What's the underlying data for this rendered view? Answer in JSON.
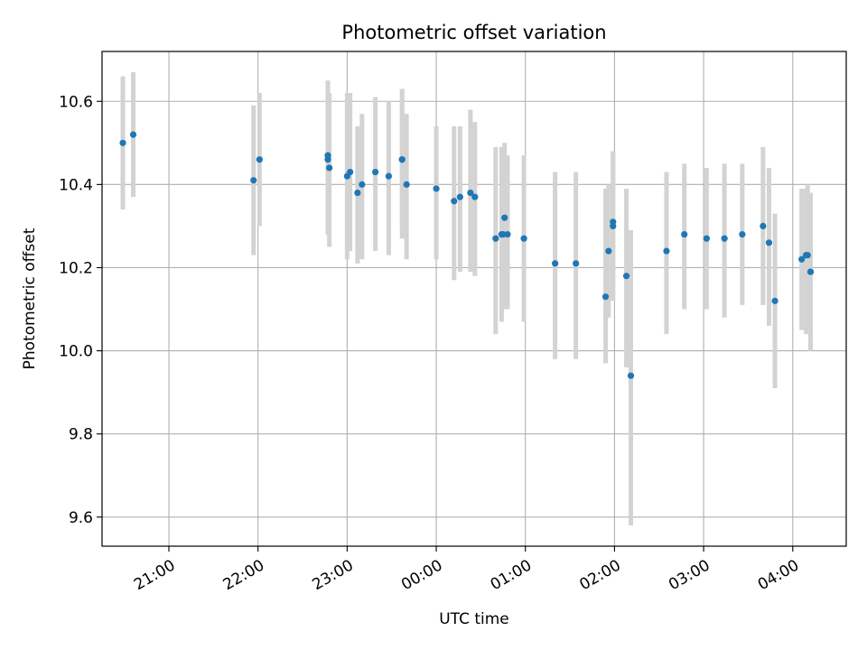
{
  "chart_data": {
    "type": "scatter",
    "title": "Photometric offset variation",
    "xlabel": "UTC time",
    "ylabel": "Photometric offset",
    "x_axis": {
      "kind": "time",
      "range": [
        "20:15",
        "04:36"
      ],
      "ticks": [
        "21:00",
        "22:00",
        "23:00",
        "00:00",
        "01:00",
        "02:00",
        "03:00",
        "04:00"
      ]
    },
    "y_axis": {
      "range": [
        9.53,
        10.72
      ],
      "ticks": [
        "9.6",
        "9.8",
        "10.0",
        "10.2",
        "10.4",
        "10.6"
      ]
    },
    "grid": true,
    "colors": {
      "points": "#1f77b4",
      "error_bars": "#d3d3d3",
      "grid": "#b0b0b0"
    },
    "series": [
      {
        "x": [
          "20:29",
          "20:36",
          "21:57",
          "22:01",
          "22:47",
          "22:47",
          "22:48",
          "23:00",
          "23:02",
          "23:07",
          "23:10",
          "23:19",
          "23:28",
          "23:37",
          "23:37",
          "23:40",
          "00:00",
          "00:12",
          "00:16",
          "00:23",
          "00:26",
          "00:40",
          "00:44",
          "00:45",
          "00:46",
          "00:48",
          "00:59",
          "01:20",
          "01:34",
          "01:54",
          "01:56",
          "01:59",
          "01:59",
          "02:08",
          "02:11",
          "02:35",
          "02:47",
          "03:02",
          "03:14",
          "03:26",
          "03:40",
          "03:44",
          "03:48",
          "04:06",
          "04:09",
          "04:10",
          "04:12",
          "04:12"
        ],
        "y": [
          10.5,
          10.52,
          10.41,
          10.46,
          10.46,
          10.47,
          10.44,
          10.42,
          10.43,
          10.38,
          10.4,
          10.43,
          10.42,
          10.46,
          10.46,
          10.4,
          10.39,
          10.36,
          10.37,
          10.38,
          10.37,
          10.27,
          10.28,
          10.28,
          10.32,
          10.28,
          10.27,
          10.21,
          10.21,
          10.13,
          10.24,
          10.3,
          10.31,
          10.18,
          9.94,
          10.24,
          10.28,
          10.27,
          10.27,
          10.28,
          10.3,
          10.26,
          10.12,
          10.22,
          10.23,
          10.23,
          10.19,
          10.19
        ],
        "y_err_low": [
          10.34,
          10.37,
          10.23,
          10.3,
          10.28,
          10.29,
          10.25,
          10.22,
          10.24,
          10.21,
          10.22,
          10.24,
          10.23,
          10.27,
          10.29,
          10.22,
          10.22,
          10.17,
          10.19,
          10.19,
          10.18,
          10.04,
          10.07,
          10.1,
          10.13,
          10.1,
          10.07,
          9.98,
          9.98,
          9.97,
          10.08,
          10.12,
          10.15,
          9.96,
          9.58,
          10.04,
          10.1,
          10.1,
          10.08,
          10.11,
          10.11,
          10.06,
          9.91,
          10.05,
          10.04,
          10.04,
          10.0,
          10.0
        ],
        "y_err_high": [
          10.66,
          10.67,
          10.59,
          10.62,
          10.64,
          10.65,
          10.62,
          10.62,
          10.62,
          10.54,
          10.57,
          10.61,
          10.6,
          10.63,
          10.63,
          10.57,
          10.54,
          10.54,
          10.54,
          10.58,
          10.55,
          10.49,
          10.49,
          10.49,
          10.5,
          10.47,
          10.47,
          10.43,
          10.43,
          10.39,
          10.4,
          10.48,
          10.48,
          10.39,
          10.29,
          10.43,
          10.45,
          10.44,
          10.45,
          10.45,
          10.49,
          10.44,
          10.33,
          10.39,
          10.39,
          10.4,
          10.38,
          10.38
        ]
      }
    ]
  }
}
